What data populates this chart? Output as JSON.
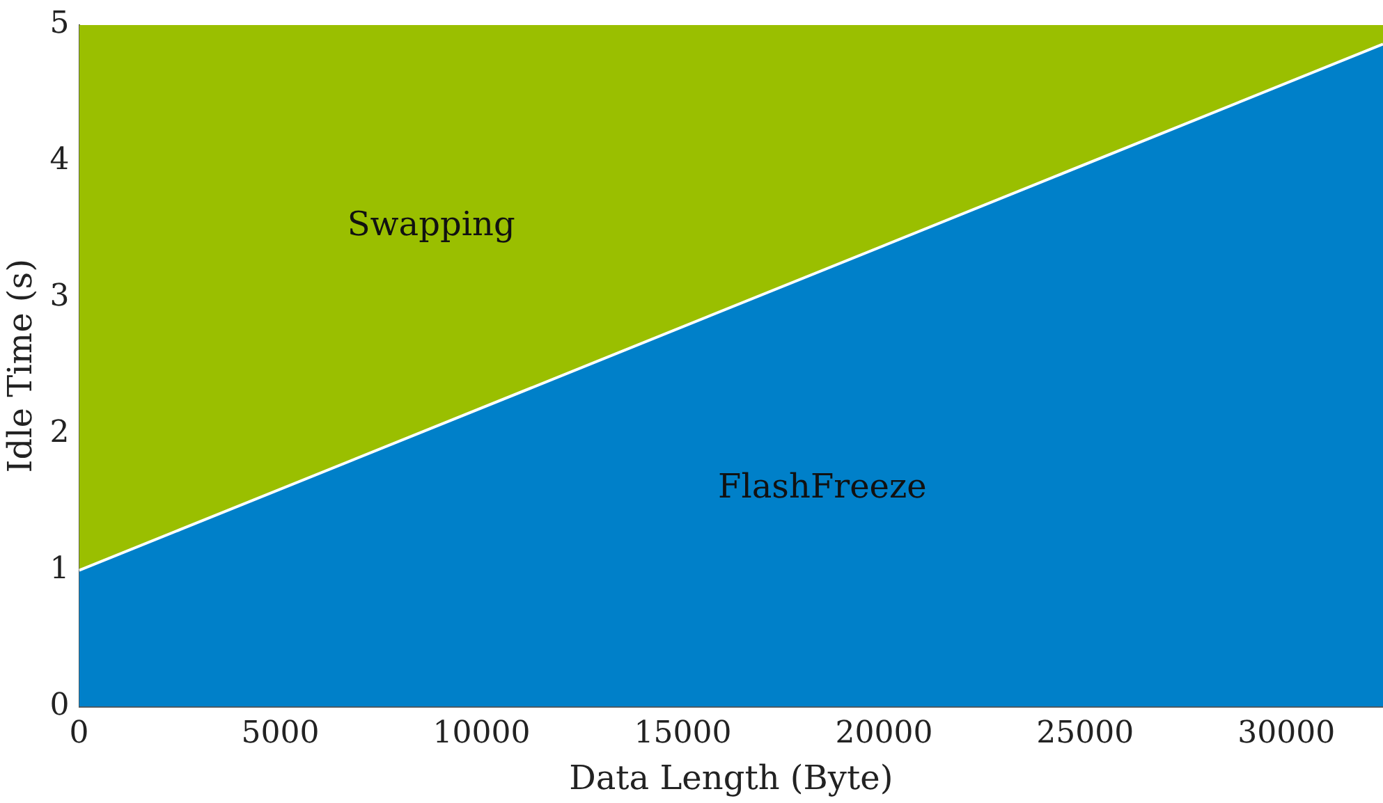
{
  "chart_data": {
    "type": "area",
    "xlabel": "Data Length (Byte)",
    "ylabel": "Idle Time (s)",
    "stacked": true,
    "x": [
      0,
      32400
    ],
    "series": [
      {
        "name": "FlashFreeze",
        "color": "#0080c9",
        "values": [
          1,
          4.86
        ]
      },
      {
        "name": "Swapping",
        "color": "#9abf00",
        "values": [
          4,
          0.14
        ]
      }
    ],
    "xlim": [
      0,
      32400
    ],
    "xticks": [
      0,
      5000,
      10000,
      15000,
      20000,
      25000,
      30000
    ],
    "ylim": [
      0,
      5
    ],
    "yticks": [
      0,
      1,
      2,
      3,
      4,
      5
    ]
  }
}
